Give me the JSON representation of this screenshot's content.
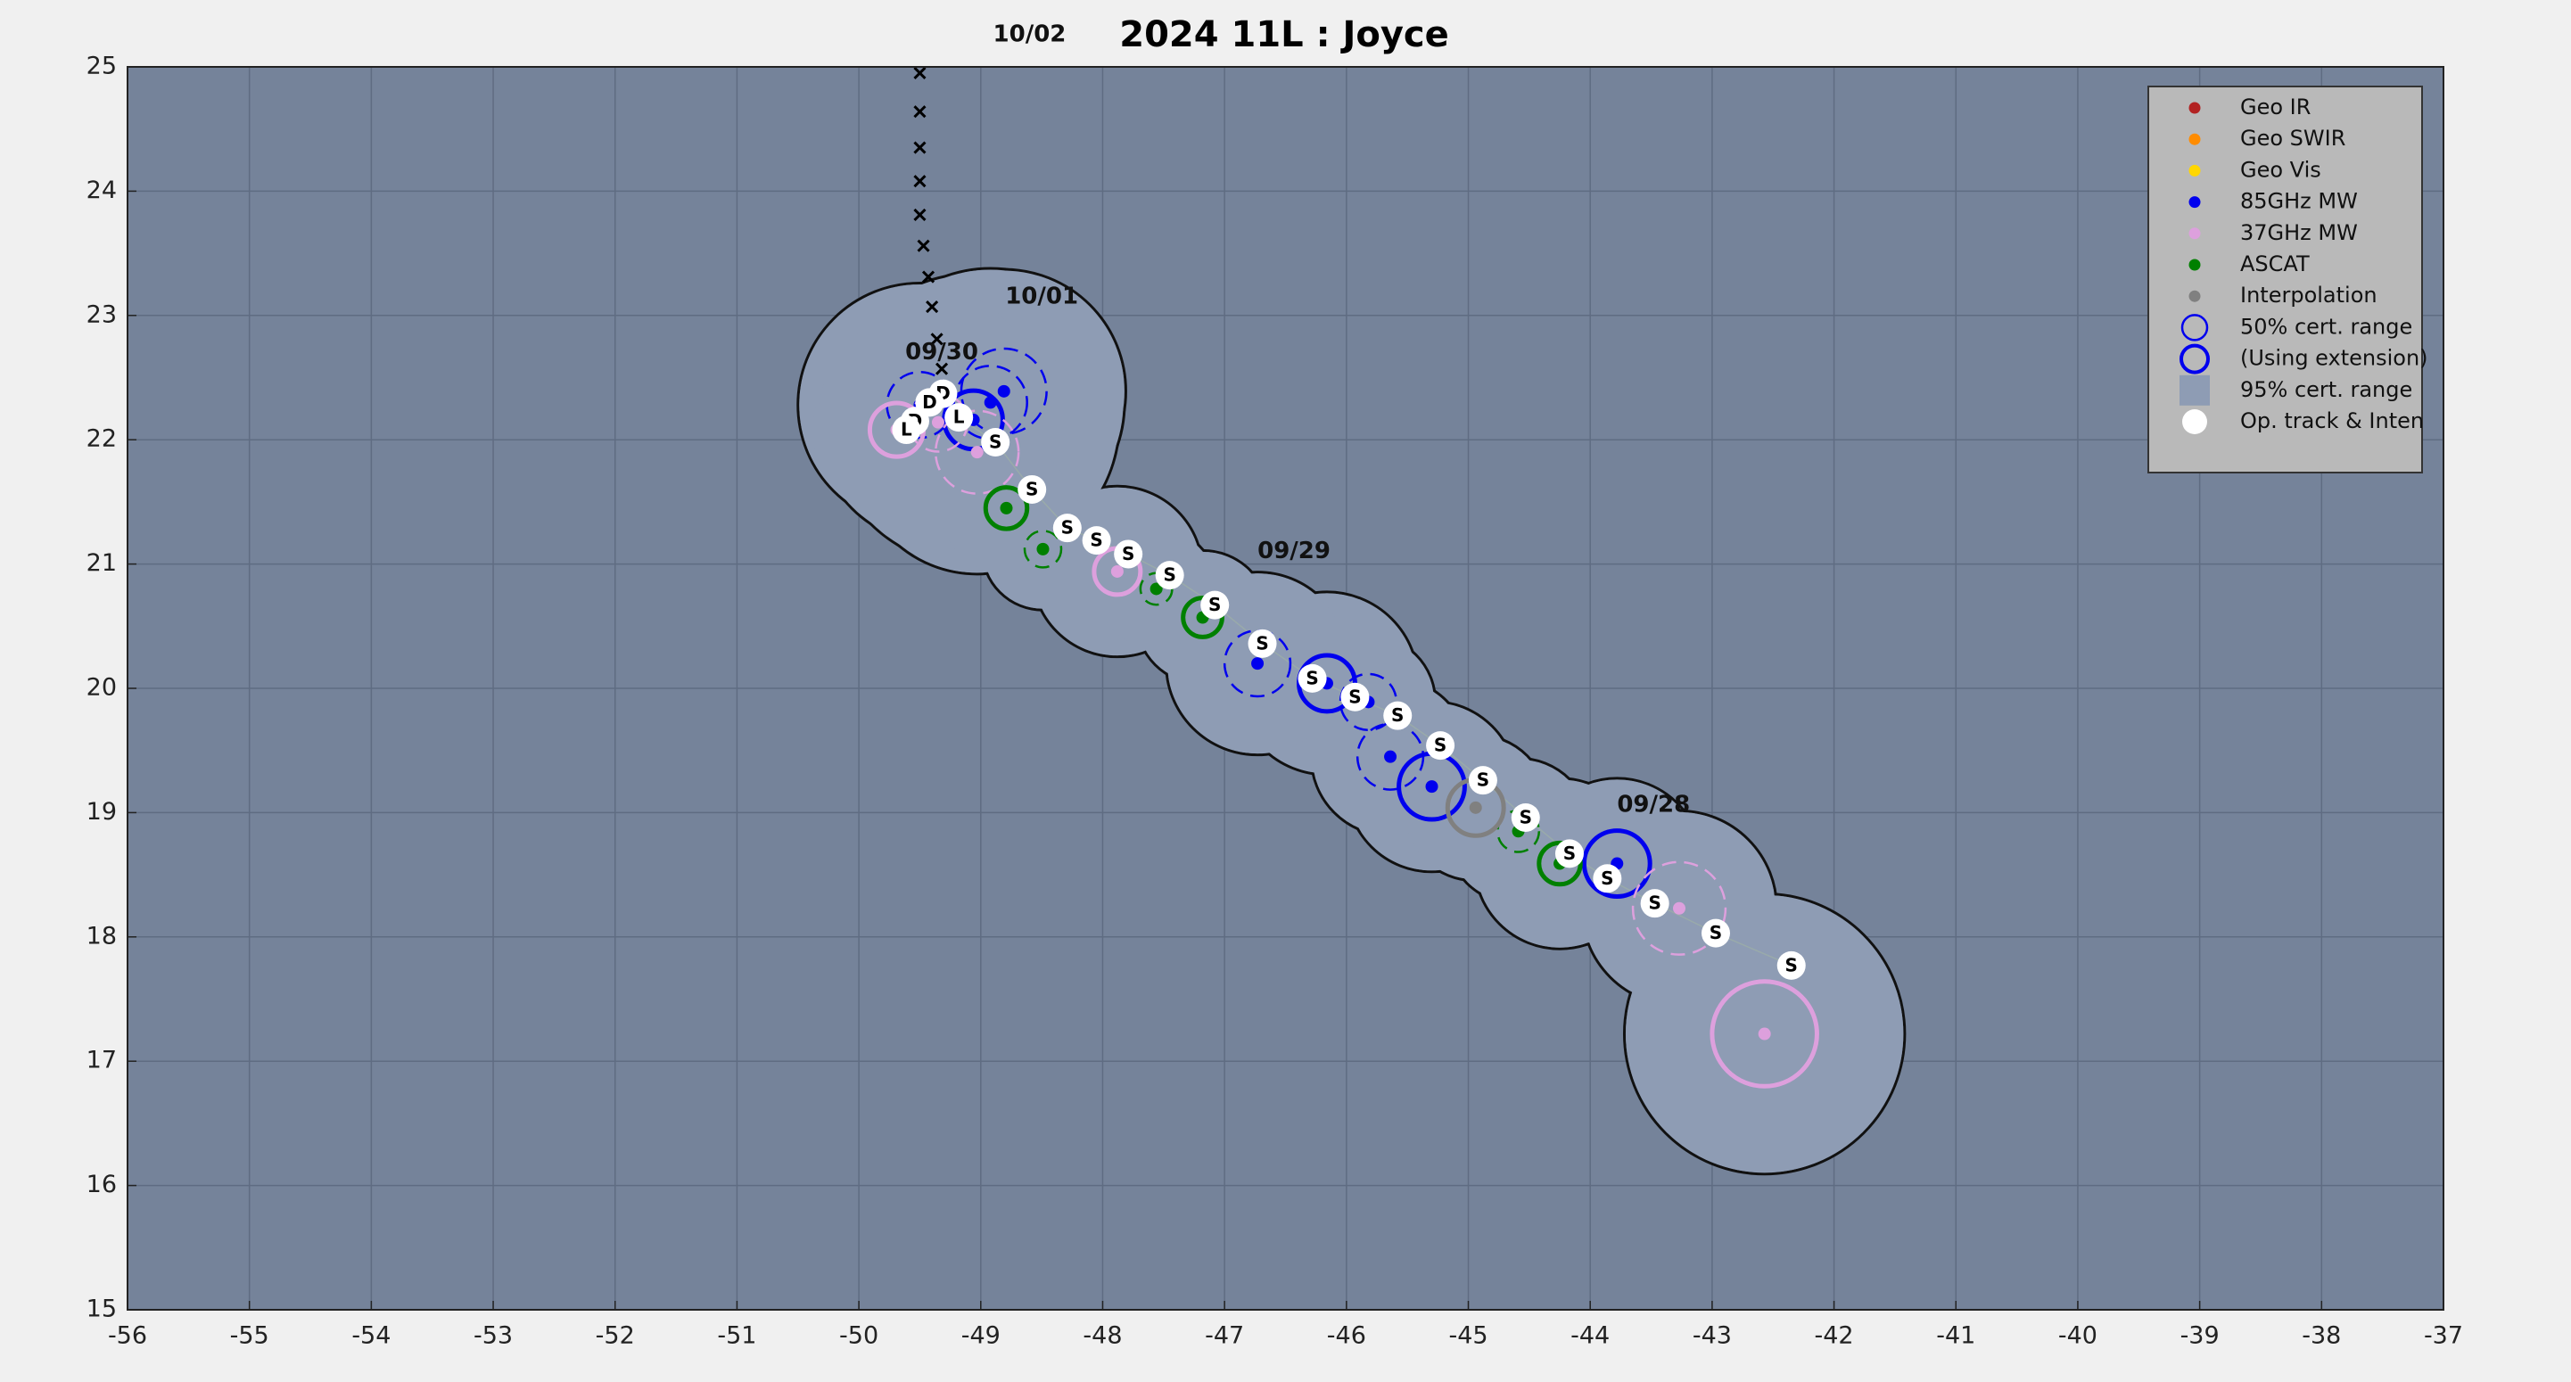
{
  "chart_data": {
    "type": "scatter",
    "title": "2024  11L :  Joyce",
    "xlim": [
      -56,
      -37
    ],
    "ylim": [
      15,
      25
    ],
    "xticks": [
      -56,
      -55,
      -54,
      -53,
      -52,
      -51,
      -50,
      -49,
      -48,
      -47,
      -46,
      -45,
      -44,
      -43,
      -42,
      -41,
      -40,
      -39,
      -38,
      -37
    ],
    "yticks": [
      15,
      16,
      17,
      18,
      19,
      20,
      21,
      22,
      23,
      24,
      25
    ],
    "grid": true,
    "legend": "upper right",
    "series": [
      {
        "name": "Geo IR",
        "color": "#b22222",
        "x": [],
        "y": [],
        "radius": [],
        "radius95": [],
        "extension": []
      },
      {
        "name": "Geo SWIR",
        "color": "#ff8c00",
        "x": [],
        "y": [],
        "radius": [],
        "radius95": [],
        "extension": []
      },
      {
        "name": "Geo Vis",
        "color": "#ffd700",
        "x": [],
        "y": [],
        "radius": [],
        "radius95": [],
        "extension": []
      },
      {
        "name": "85GHz MW",
        "color": "#0000ee",
        "x": [
          -43.78,
          -45.3,
          -45.64,
          -45.82,
          -46.16,
          -46.73,
          -49.06,
          -48.92,
          -48.81,
          -49.5
        ],
        "y": [
          18.59,
          19.21,
          19.45,
          19.89,
          20.04,
          20.2,
          22.16,
          22.3,
          22.39,
          22.28
        ],
        "radius": [
          0.27,
          0.27,
          0.27,
          0.23,
          0.23,
          0.27,
          0.24,
          0.3,
          0.35,
          0.27
        ],
        "radius95": [
          0.7,
          0.7,
          0.65,
          0.55,
          0.75,
          0.75,
          1.2,
          1.1,
          1.0,
          1.0
        ],
        "extension": [
          true,
          true,
          false,
          false,
          true,
          false,
          true,
          false,
          false,
          false
        ]
      },
      {
        "name": "37GHz MW",
        "color": "#dda0dd",
        "x": [
          -42.57,
          -43.27,
          -47.88,
          -49.03,
          -49.69,
          -49.35
        ],
        "y": [
          17.22,
          18.23,
          20.94,
          21.9,
          22.08,
          22.14
        ],
        "radius": [
          0.43,
          0.38,
          0.19,
          0.34,
          0.22,
          0.24
        ],
        "radius95": [
          1.15,
          0.8,
          0.7,
          1.0,
          0.7,
          1.0
        ],
        "extension": [
          true,
          false,
          true,
          false,
          true,
          false
        ]
      },
      {
        "name": "ASCAT",
        "color": "#008000",
        "x": [
          -44.25,
          -44.59,
          -47.18,
          -47.56,
          -48.49,
          -48.79
        ],
        "y": [
          18.59,
          18.85,
          20.57,
          20.8,
          21.12,
          21.45
        ],
        "radius": [
          0.17,
          0.17,
          0.16,
          0.13,
          0.15,
          0.17
        ],
        "radius95": [
          0.7,
          0.6,
          0.55,
          0.5,
          0.5,
          0.55
        ],
        "extension": [
          true,
          false,
          true,
          false,
          false,
          true
        ]
      },
      {
        "name": "Interpolation",
        "color": "#808080",
        "x": [
          -44.94
        ],
        "y": [
          19.04
        ],
        "radius": [
          0.23
        ],
        "radius95": [
          0.6
        ],
        "extension": [
          true
        ]
      }
    ],
    "cert_50": {
      "name": "50% cert. range",
      "color": "#0000ee"
    },
    "cert_ext": {
      "name": "(Using extension)",
      "color": "#0000ee"
    },
    "cert_95": {
      "name": "95% cert. range",
      "color": "#8e9cb4"
    },
    "op_track": {
      "name": "Op. track & Inten",
      "color": "#ffffff",
      "x": [
        -42.35,
        -42.97,
        -43.47,
        -43.86,
        -44.17,
        -44.53,
        -44.88,
        -45.23,
        -45.58,
        -45.93,
        -46.28,
        -46.69,
        -47.08,
        -47.45,
        -47.79,
        -48.05,
        -48.29,
        -48.58,
        -48.88,
        -49.18,
        -49.31,
        -49.42,
        -49.54,
        -49.61
      ],
      "y": [
        17.77,
        18.03,
        18.27,
        18.47,
        18.67,
        18.96,
        19.26,
        19.54,
        19.78,
        19.93,
        20.08,
        20.36,
        20.67,
        20.91,
        21.08,
        21.19,
        21.29,
        21.6,
        21.98,
        22.18,
        22.37,
        22.3,
        22.15,
        22.08
      ],
      "labels": [
        "S",
        "S",
        "S",
        "S",
        "S",
        "S",
        "S",
        "S",
        "S",
        "S",
        "S",
        "S",
        "S",
        "S",
        "S",
        "S",
        "S",
        "S",
        "S",
        "L",
        "D",
        "D",
        "D",
        "L"
      ]
    },
    "forecast": {
      "color": "#000000",
      "x": [
        -49.5,
        -49.5,
        -49.5,
        -49.5,
        -49.5,
        -49.47,
        -49.43,
        -49.4,
        -49.36,
        -49.32
      ],
      "y": [
        24.95,
        24.64,
        24.35,
        24.08,
        23.81,
        23.56,
        23.31,
        23.07,
        22.81,
        22.57
      ]
    },
    "annotations": [
      {
        "text": "10/02",
        "x": -48.6,
        "y": 25.26
      },
      {
        "text": "10/01",
        "x": -48.5,
        "y": 23.15
      },
      {
        "text": "09/30",
        "x": -49.32,
        "y": 22.7
      },
      {
        "text": "09/29",
        "x": -46.43,
        "y": 21.1
      },
      {
        "text": "09/28",
        "x": -43.48,
        "y": 19.06
      }
    ]
  }
}
